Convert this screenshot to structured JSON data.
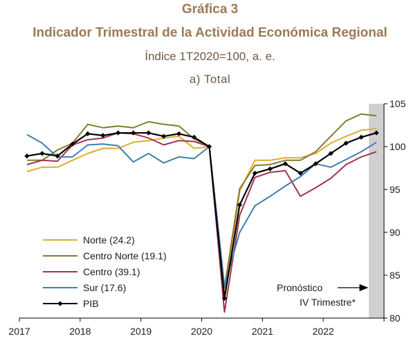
{
  "header": {
    "title": "Gráfica 3",
    "subtitle": "Indicador Trimestral de la Actividad Económica Regional",
    "index_note": "Índice 1T2020=100, a. e.",
    "panel": "a) Total"
  },
  "chart_data": {
    "type": "line",
    "x_labels": [
      "2017",
      "2018",
      "2019",
      "2020",
      "2021",
      "2022"
    ],
    "quarters": [
      "2017Q1",
      "2017Q2",
      "2017Q3",
      "2017Q4",
      "2018Q1",
      "2018Q2",
      "2018Q3",
      "2018Q4",
      "2019Q1",
      "2019Q2",
      "2019Q3",
      "2019Q4",
      "2020Q1",
      "2020Q2",
      "2020Q3",
      "2020Q4",
      "2021Q1",
      "2021Q2",
      "2021Q3",
      "2021Q4",
      "2022Q1",
      "2022Q2",
      "2022Q3",
      "2022Q4"
    ],
    "ylim": [
      80,
      105
    ],
    "y_ticks": [
      80,
      85,
      90,
      95,
      100,
      105
    ],
    "y_axis_side": "right",
    "forecast_region": "2022Q4",
    "annotation": {
      "line1": "Pronóstico",
      "line2": "IV Trimestre*"
    },
    "legend_position": "bottom-left",
    "series": [
      {
        "name": "Norte",
        "share": "(24.2)",
        "color": "#e0ad2b",
        "values": [
          97.1,
          97.6,
          97.6,
          98.4,
          99.2,
          99.8,
          99.8,
          100.5,
          100.7,
          101.0,
          101.2,
          99.8,
          100.0,
          82.5,
          94.8,
          98.4,
          98.4,
          98.7,
          98.7,
          99.2,
          100.4,
          101.2,
          101.9,
          102.1
        ]
      },
      {
        "name": "Centro Norte",
        "share": "(19.1)",
        "color": "#847a2f",
        "values": [
          98.4,
          98.4,
          99.6,
          100.4,
          102.6,
          102.2,
          102.4,
          102.2,
          102.9,
          102.6,
          102.4,
          100.9,
          100.0,
          83.5,
          95.1,
          97.8,
          97.9,
          98.4,
          98.4,
          99.4,
          101.2,
          103.0,
          103.8,
          103.6
        ]
      },
      {
        "name": "Centro",
        "share": "(39.1)",
        "color": "#a1334f",
        "values": [
          97.9,
          98.4,
          98.3,
          100.2,
          100.8,
          101.0,
          101.6,
          101.5,
          101.0,
          100.2,
          100.7,
          100.6,
          100.0,
          80.7,
          92.0,
          96.4,
          97.0,
          97.2,
          94.2,
          95.2,
          96.3,
          97.9,
          98.8,
          99.4
        ]
      },
      {
        "name": "Sur",
        "share": "(17.6)",
        "color": "#3d7fae",
        "values": [
          101.4,
          100.4,
          98.8,
          98.8,
          100.2,
          100.3,
          100.1,
          98.2,
          99.2,
          98.1,
          98.8,
          98.6,
          100.0,
          83.8,
          90.0,
          93.1,
          94.2,
          95.4,
          96.5,
          98.0,
          97.6,
          98.5,
          99.4,
          100.5
        ]
      },
      {
        "name": "PIB",
        "share": "",
        "color": "#000000",
        "marker": "diamond",
        "values": [
          98.9,
          99.2,
          98.9,
          100.3,
          101.5,
          101.3,
          101.6,
          101.6,
          101.6,
          101.2,
          101.5,
          101.1,
          100.0,
          82.3,
          93.2,
          96.9,
          97.4,
          98.0,
          96.9,
          98.0,
          99.2,
          100.4,
          101.1,
          101.6
        ]
      }
    ]
  }
}
